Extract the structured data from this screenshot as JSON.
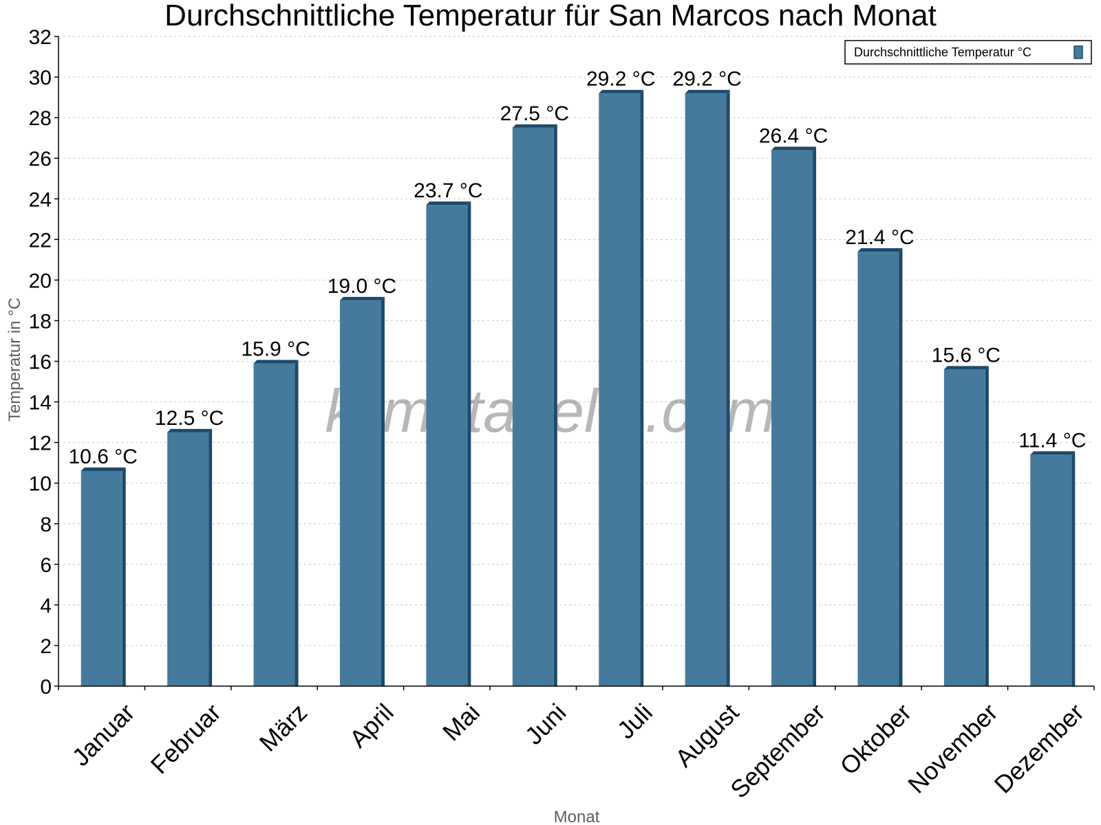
{
  "chart_data": {
    "type": "bar",
    "title": "Durchschnittliche Temperatur für San Marcos nach Monat",
    "xlabel": "Monat",
    "ylabel": "Temperatur in °C",
    "categories": [
      "Januar",
      "Februar",
      "März",
      "April",
      "Mai",
      "Juni",
      "Juli",
      "August",
      "September",
      "Oktober",
      "November",
      "Dezember"
    ],
    "series": [
      {
        "name": "Durchschnittliche Temperatur °C",
        "values": [
          10.6,
          12.5,
          15.9,
          19.0,
          23.7,
          27.5,
          29.2,
          29.2,
          26.4,
          21.4,
          15.6,
          11.4
        ],
        "data_labels": [
          "10.6 °C",
          "12.5 °C",
          "15.9 °C",
          "19.0 °C",
          "23.7 °C",
          "27.5 °C",
          "29.2 °C",
          "29.2 °C",
          "26.4 °C",
          "21.4 °C",
          "15.6 °C",
          "11.4 °C"
        ],
        "color": "#467a9c",
        "edge_color": "#1d4a6b"
      }
    ],
    "ylim": [
      0,
      32
    ],
    "yticks": [
      "0",
      "2",
      "4",
      "6",
      "8",
      "10",
      "12",
      "14",
      "16",
      "18",
      "20",
      "22",
      "24",
      "26",
      "28",
      "30",
      "32"
    ],
    "grid": true,
    "legend_position": "top-right",
    "watermark": "klimatabelle.com"
  }
}
